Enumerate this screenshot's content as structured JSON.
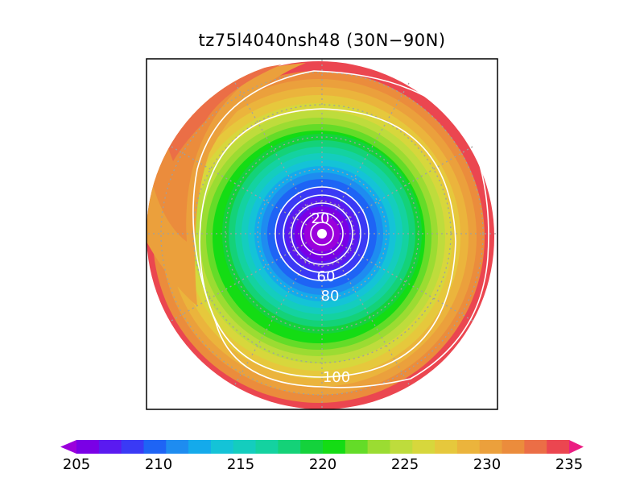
{
  "title": "tz75l4040nsh48 (30N−90N)",
  "colorbar": {
    "min": 205,
    "max": 235,
    "step": 1.25,
    "tick_labels": [
      "205",
      "210",
      "215",
      "220",
      "225",
      "230",
      "235"
    ],
    "colors": [
      "#9b00dc",
      "#7a00e6",
      "#5a1af0",
      "#3a3af5",
      "#1e64f5",
      "#1e8cf0",
      "#14aaeb",
      "#14c3d7",
      "#14cdbe",
      "#14d2a0",
      "#14d278",
      "#14d23c",
      "#14dc14",
      "#64dc28",
      "#9bdc32",
      "#bedc3c",
      "#d7d73c",
      "#e6c83c",
      "#ebb43c",
      "#eba03c",
      "#eb8c3c",
      "#eb6e46",
      "#eb4650",
      "#eb1e82"
    ]
  },
  "contours": [
    {
      "value": 20,
      "label": "20"
    },
    {
      "value": 60,
      "label": "60"
    },
    {
      "value": 80,
      "label": "80"
    },
    {
      "value": 100,
      "label": "100"
    }
  ],
  "map": {
    "projection": "north polar stereographic",
    "lat_range": [
      30,
      90
    ]
  }
}
